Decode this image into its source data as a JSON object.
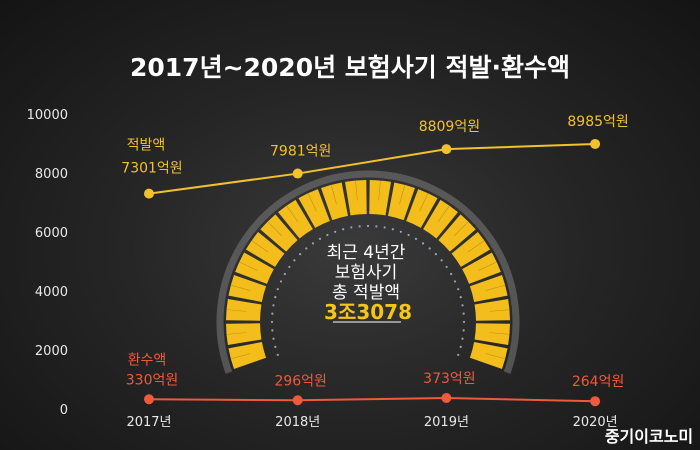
{
  "chart_data": {
    "type": "line",
    "title": "2017년~2020년 보험사기 적발·환수액",
    "categories": [
      "2017년",
      "2018년",
      "2019년",
      "2020년"
    ],
    "ylim": [
      0,
      10000
    ],
    "yticks": [
      "0",
      "2000",
      "4000",
      "6000",
      "8000",
      "10000"
    ],
    "series": [
      {
        "name": "적발액",
        "values": [
          7301,
          7981,
          8809,
          8985
        ],
        "labels": [
          "7301억원",
          "7981억원",
          "8809억원",
          "8985억원"
        ],
        "color": "#f2c12e"
      },
      {
        "name": "환수액",
        "values": [
          330,
          296,
          373,
          264
        ],
        "labels": [
          "330억원",
          "296억원",
          "373억원",
          "264억원"
        ],
        "color": "#ee5a3c"
      }
    ],
    "center_badge": {
      "line1": "최근 4년간",
      "line2": "보험사기",
      "line3": "총 적발액",
      "total": "3조3078"
    },
    "grid": false,
    "legend": "inline"
  },
  "credit": "중기이코노미"
}
